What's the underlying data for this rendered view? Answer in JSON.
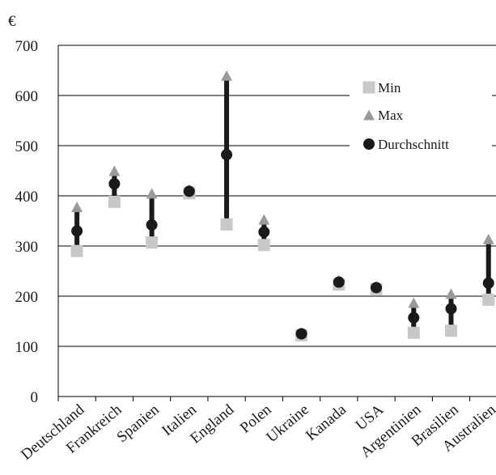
{
  "chart_data": {
    "type": "scatter",
    "ylabel": "€",
    "ylim": [
      0,
      700
    ],
    "yticks": [
      0,
      100,
      200,
      300,
      400,
      500,
      600,
      700
    ],
    "grid": true,
    "legend_position": "top-right",
    "categories": [
      "Deutschland",
      "Frankreich",
      "Spanien",
      "Italien",
      "England",
      "Polen",
      "Ukraine",
      "Kanada",
      "USA",
      "Argentinien",
      "Brasilien",
      "Australien"
    ],
    "series": [
      {
        "name": "Min",
        "marker": "square",
        "color": "#c8c8c8",
        "values": [
          290,
          388,
          307,
          405,
          343,
          302,
          122,
          223,
          214,
          127,
          131,
          193
        ]
      },
      {
        "name": "Max",
        "marker": "triangle",
        "color": "#9a9a9a",
        "values": [
          378,
          450,
          405,
          413,
          640,
          353,
          127,
          232,
          220,
          187,
          205,
          314
        ]
      },
      {
        "name": "Durchschnitt",
        "marker": "circle",
        "color": "#1a1a1a",
        "values": [
          330,
          424,
          342,
          409,
          482,
          328,
          125,
          228,
          217,
          157,
          175,
          226
        ]
      }
    ],
    "range_bar_color": "#1a1a1a"
  }
}
